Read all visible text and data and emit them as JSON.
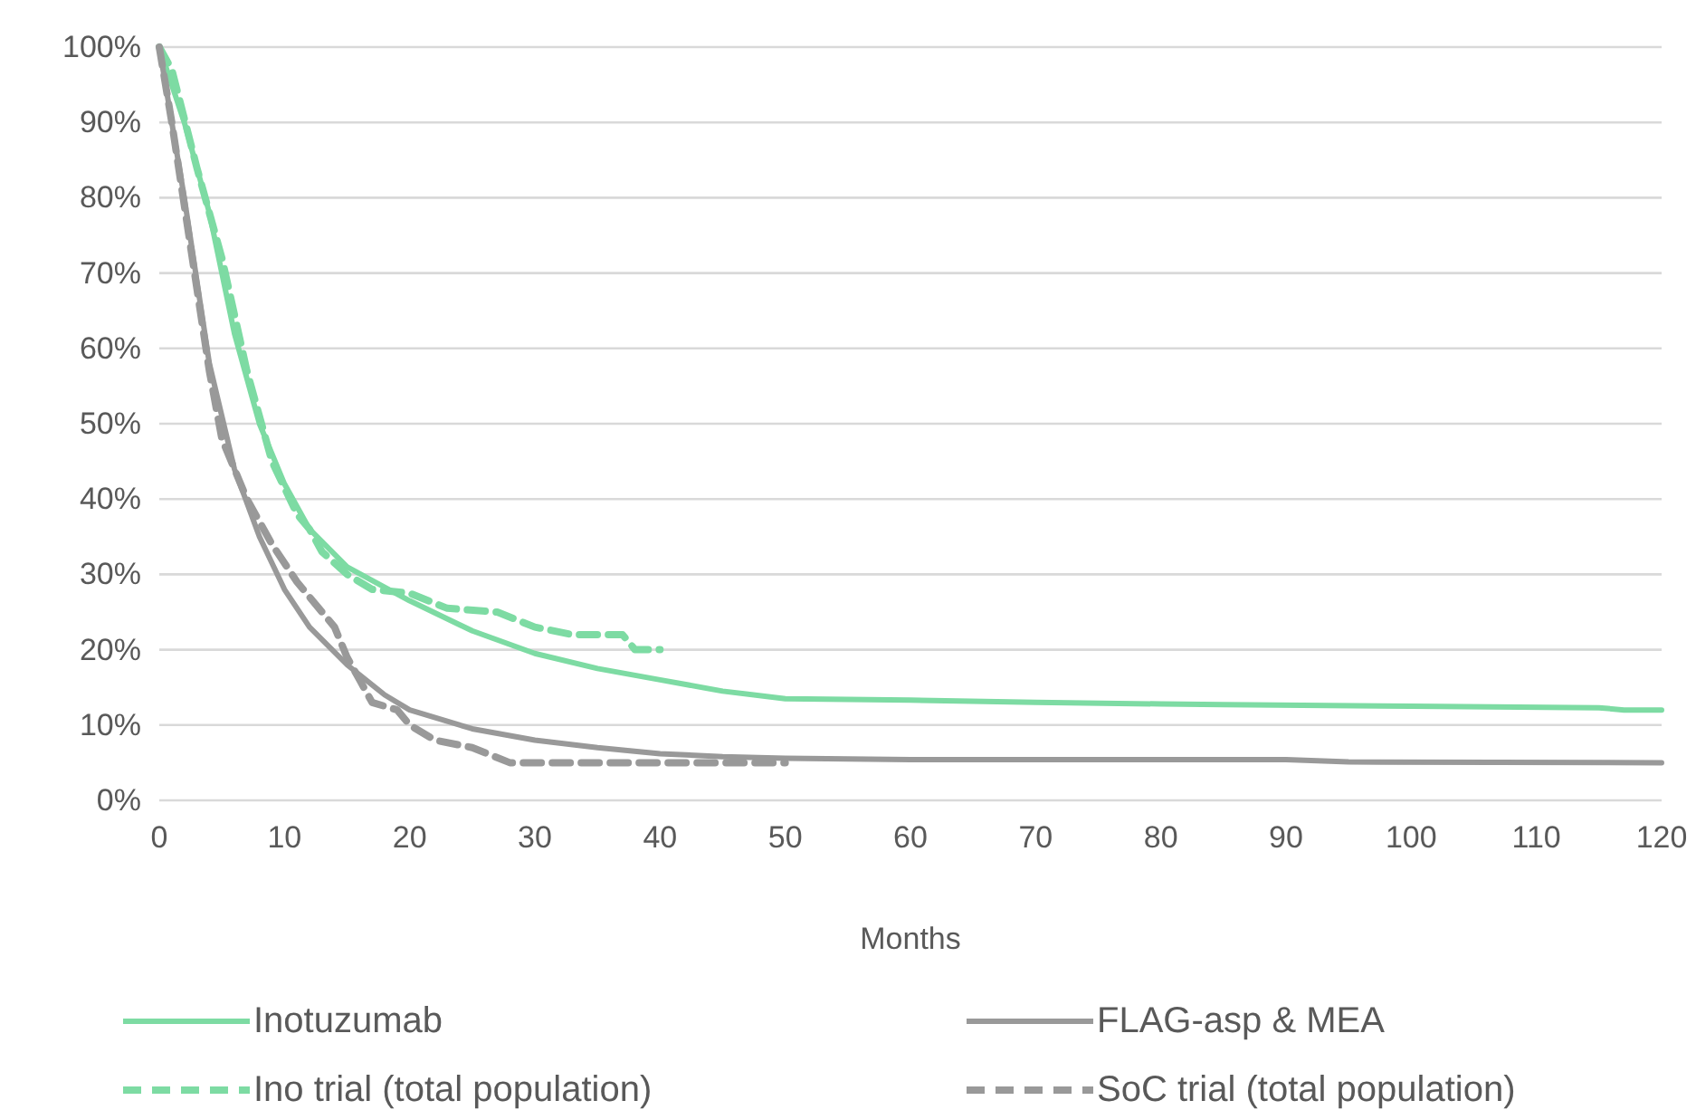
{
  "chart_data": {
    "type": "line",
    "xlabel": "Months",
    "xlim": [
      0,
      120
    ],
    "xticks": [
      0,
      10,
      20,
      30,
      40,
      50,
      60,
      70,
      80,
      90,
      100,
      110,
      120
    ],
    "ylim": [
      0,
      100
    ],
    "yticks": [
      {
        "value": 0,
        "label": "0%"
      },
      {
        "value": 10,
        "label": "10%"
      },
      {
        "value": 20,
        "label": "20%"
      },
      {
        "value": 30,
        "label": "30%"
      },
      {
        "value": 40,
        "label": "40%"
      },
      {
        "value": 50,
        "label": "50%"
      },
      {
        "value": 60,
        "label": "60%"
      },
      {
        "value": 70,
        "label": "70%"
      },
      {
        "value": 80,
        "label": "80%"
      },
      {
        "value": 90,
        "label": "90%"
      },
      {
        "value": 100,
        "label": "100%"
      }
    ],
    "grid": "y",
    "legend": "bottom",
    "marker": "none",
    "series": [
      {
        "name": "Inotuzumab",
        "color": "#7ddba3",
        "line_style": "solid",
        "x": [
          0,
          2,
          4,
          6,
          8,
          10,
          12,
          15,
          20,
          25,
          30,
          35,
          40,
          45,
          50,
          60,
          70,
          80,
          85,
          100,
          115,
          117,
          120
        ],
        "values": [
          100,
          90,
          78,
          62,
          50,
          42,
          36,
          31,
          26.5,
          22.5,
          19.5,
          17.5,
          16,
          14.5,
          13.5,
          13.3,
          13,
          12.8,
          12.7,
          12.5,
          12.3,
          12,
          12
        ]
      },
      {
        "name": "FLAG-asp & MEA",
        "color": "#999999",
        "line_style": "solid",
        "x": [
          0,
          2,
          4,
          6,
          8,
          10,
          12,
          15,
          18,
          20,
          25,
          30,
          35,
          40,
          45,
          50,
          55,
          60,
          90,
          95,
          120
        ],
        "values": [
          100,
          80,
          58,
          44,
          35,
          28,
          23,
          18,
          14,
          12,
          9.5,
          8,
          7,
          6.2,
          5.8,
          5.6,
          5.5,
          5.4,
          5.4,
          5.1,
          5
        ]
      },
      {
        "name": "Ino trial (total population)",
        "color": "#7ddba3",
        "line_style": "dashed",
        "x": [
          0,
          1,
          3,
          5,
          7,
          9,
          11,
          12,
          13,
          15,
          17,
          20,
          23,
          27,
          30,
          33,
          37,
          38,
          40
        ],
        "values": [
          100,
          97,
          84,
          72,
          57,
          45,
          38,
          36,
          33,
          30,
          28,
          27.5,
          25.5,
          25,
          23,
          22,
          22,
          20,
          20
        ]
      },
      {
        "name": "SoC trial (total population)",
        "color": "#999999",
        "line_style": "dashed",
        "x": [
          0,
          1,
          3,
          4,
          5,
          7,
          9,
          11,
          13,
          14,
          15,
          16,
          17,
          19,
          20,
          22,
          25,
          28,
          30,
          48,
          50
        ],
        "values": [
          100,
          90,
          68,
          57,
          48,
          40,
          34,
          29,
          25,
          23,
          19,
          16,
          13,
          12,
          10,
          8,
          7,
          5,
          5,
          5,
          5
        ]
      }
    ]
  }
}
